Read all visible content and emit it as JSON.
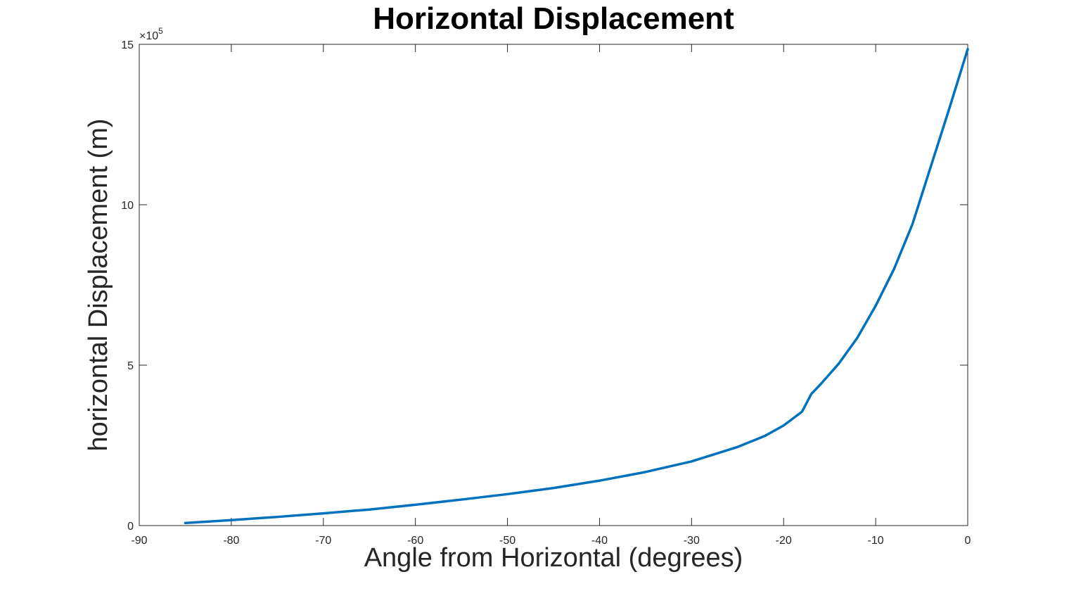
{
  "chart_data": {
    "type": "line",
    "title": "Horizontal Displacement",
    "xlabel": "Angle from Horizontal (degrees)",
    "ylabel": "horizontal Displacement (m)",
    "xlim": [
      -90,
      0
    ],
    "ylim": [
      0,
      15
    ],
    "y_exponent_label": "×10",
    "y_exponent_power": "5",
    "x_ticks": [
      "-90",
      "-80",
      "-70",
      "-60",
      "-50",
      "-40",
      "-30",
      "-20",
      "-10",
      "0"
    ],
    "x_tick_values": [
      -90,
      -80,
      -70,
      -60,
      -50,
      -40,
      -30,
      -20,
      -10,
      0
    ],
    "y_ticks": [
      "0",
      "5",
      "10",
      "15"
    ],
    "y_tick_values": [
      0,
      5,
      10,
      15
    ],
    "grid": false,
    "series": [
      {
        "color": "#0072BD",
        "x": [
          -85,
          -80,
          -75,
          -70,
          -65,
          -60,
          -55,
          -50,
          -45,
          -40,
          -35,
          -30,
          -25,
          -22,
          -20,
          -18,
          -17,
          -16,
          -14,
          -12,
          -10,
          -8,
          -6,
          -5,
          -4,
          -2,
          0
        ],
        "y": [
          0.08,
          0.17,
          0.27,
          0.38,
          0.5,
          0.65,
          0.81,
          0.98,
          1.17,
          1.4,
          1.67,
          2.0,
          2.45,
          2.8,
          3.12,
          3.55,
          4.1,
          4.4,
          5.05,
          5.85,
          6.85,
          8.0,
          9.4,
          10.3,
          11.2,
          13.0,
          14.85
        ]
      }
    ]
  }
}
